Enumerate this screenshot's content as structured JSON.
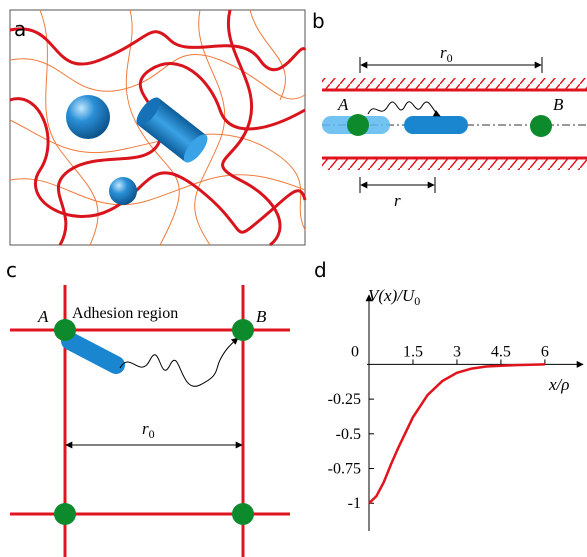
{
  "panel_a": {
    "label": "a"
  },
  "panel_b": {
    "label": "b",
    "r0": {
      "symbol": "r",
      "subscript": "0"
    },
    "point_a": "A",
    "point_b": "B",
    "distance": "r"
  },
  "panel_c": {
    "label": "c",
    "point_a": "A",
    "point_b": "B",
    "region": "Adhesion region",
    "r0": {
      "symbol": "r",
      "subscript": "0"
    }
  },
  "chart_data": {
    "type": "line",
    "panel_label": "d",
    "y_label": {
      "text": "V(x)/U",
      "subscript": "0"
    },
    "x_label": "x/ρ",
    "x": [
      0,
      0.25,
      0.5,
      0.75,
      1,
      1.5,
      2,
      2.5,
      3,
      3.5,
      4,
      5,
      6
    ],
    "series": [
      {
        "color": "#e0141e",
        "values": [
          -1,
          -0.95,
          -0.85,
          -0.72,
          -0.6,
          -0.38,
          -0.22,
          -0.12,
          -0.06,
          -0.03,
          -0.015,
          -0.005,
          0
        ]
      }
    ],
    "xlim": [
      0,
      7.3
    ],
    "ylim": [
      -1.2,
      0.5
    ],
    "xticks": [
      0,
      1.5,
      3,
      4.5,
      6
    ],
    "yticks": [
      -1,
      -0.75,
      -0.5,
      -0.25
    ]
  }
}
